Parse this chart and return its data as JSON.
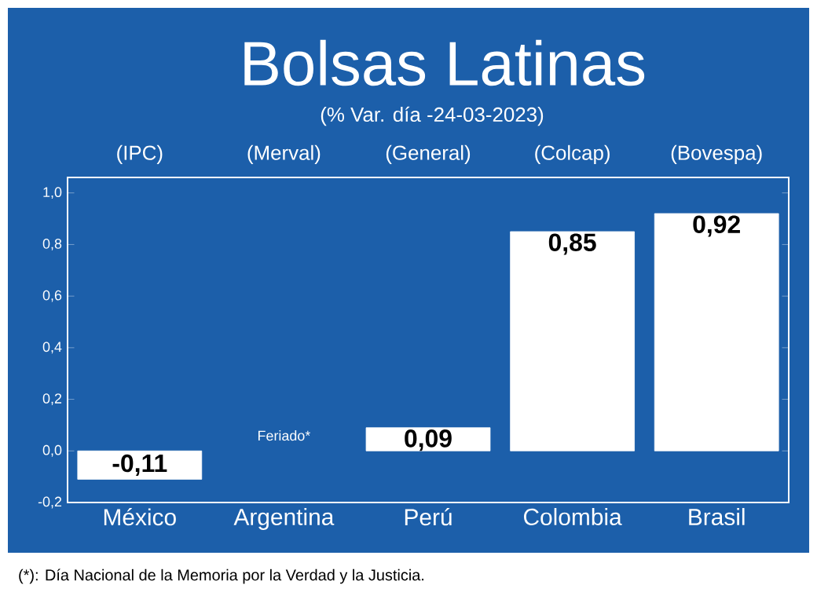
{
  "chart_data": {
    "type": "bar",
    "title": "Bolsas Latinas",
    "subtitle": "(% Var. día -24-03-2023)",
    "categories": [
      "México",
      "Argentina",
      "Perú",
      "Colombia",
      "Brasil"
    ],
    "values": [
      -0.11,
      null,
      0.09,
      0.85,
      0.92
    ],
    "value_labels": [
      "-0,11",
      null,
      "0,09",
      "0,85",
      "0,92"
    ],
    "color": "#ffffff",
    "ylim": [
      -0.2,
      1.06
    ],
    "yticks": [
      {
        "value": -0.2,
        "label": "-0,2"
      },
      {
        "value": 0,
        "label": "0,0"
      },
      {
        "value": 0.2,
        "label": "0,2"
      },
      {
        "value": 0.4,
        "label": "0,4"
      },
      {
        "value": 0.6,
        "label": "0,6"
      },
      {
        "value": 0.8,
        "label": "0,8"
      },
      {
        "value": 1.0,
        "label": "1,0"
      }
    ],
    "grid": false,
    "annotations": [
      "(IPC)",
      "(Merval)",
      "(General)",
      "(Colcap)",
      "(Bovespa)",
      "Feriado*",
      "(*): Día Nacional de la Memoria por la Verdad y la Justicia."
    ]
  }
}
